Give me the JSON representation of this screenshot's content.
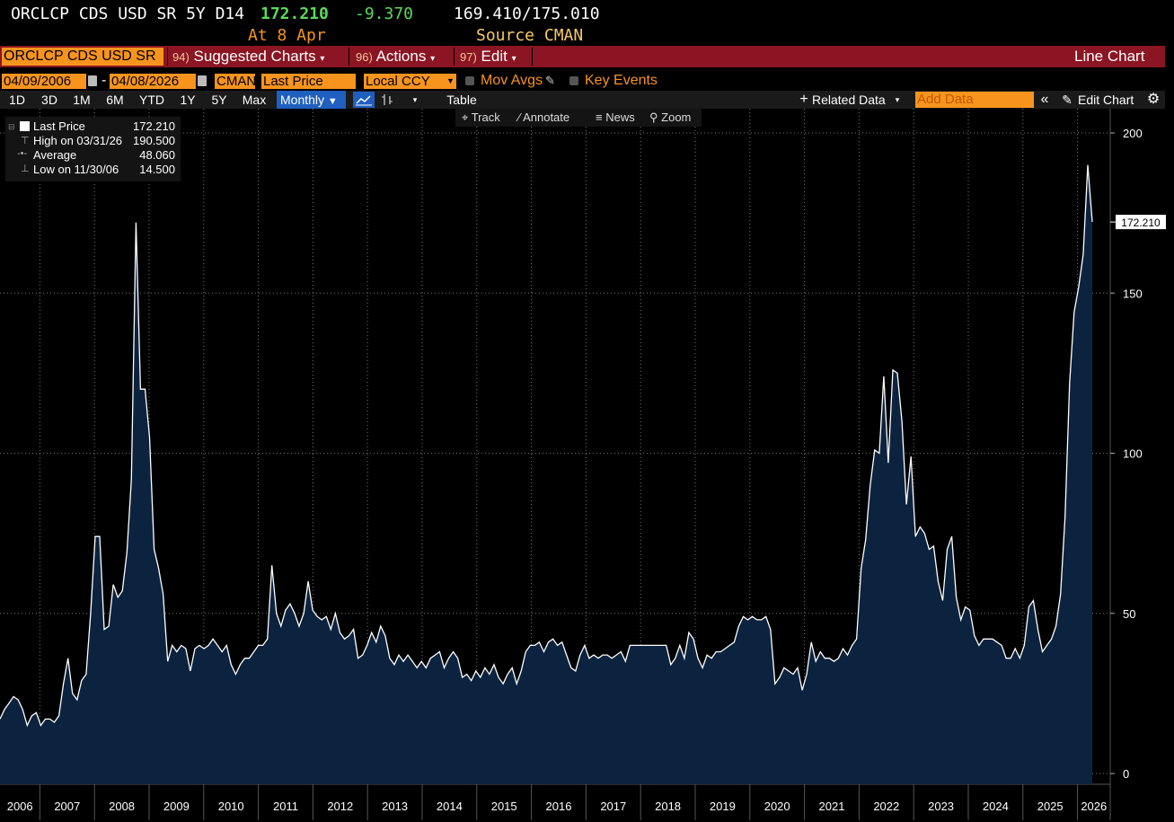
{
  "header": {
    "ticker": "ORCLCP CDS USD SR 5Y D14",
    "last": "172.210",
    "change": "-9.370",
    "bid_ask": "169.410/175.010",
    "at": "At 8 Apr",
    "source": "Source CMAN"
  },
  "menu": {
    "ticker_box": "ORCLCP CDS USD SR",
    "suggested_num": "94)",
    "suggested": "Suggested Charts",
    "actions_num": "96)",
    "actions": "Actions",
    "edit_num": "97)",
    "edit": "Edit",
    "chart_type": "Line Chart"
  },
  "controls": {
    "start_date": "04/09/2006",
    "dash": "-",
    "end_date": "04/08/2026",
    "source": "CMAN",
    "field": "Last Price",
    "currency": "Local CCY",
    "mov_avgs": "Mov Avgs",
    "key_events": "Key Events"
  },
  "range_bar": {
    "ranges": [
      "1D",
      "3D",
      "1M",
      "6M",
      "YTD",
      "1Y",
      "5Y",
      "Max"
    ],
    "frequency": "Monthly",
    "table": "Table",
    "related": "Related Data",
    "add_data_placeholder": "Add Data",
    "edit_chart": "Edit Chart"
  },
  "tools": {
    "track": "Track",
    "annotate": "Annotate",
    "news": "News",
    "zoom": "Zoom"
  },
  "legend": {
    "last_label": "Last Price",
    "last_value": "172.210",
    "high_label": "High on 03/31/26",
    "high_value": "190.500",
    "avg_label": "Average",
    "avg_value": "48.060",
    "low_label": "Low on 11/30/06",
    "low_value": "14.500"
  },
  "colors": {
    "background": "#000000",
    "line": "#ffffff",
    "area_fill": "#0c2340",
    "accent_orange": "#f7941d",
    "menu_red": "#8b1522",
    "last_green": "#5adb5a"
  },
  "chart_data": {
    "type": "area",
    "title": "",
    "xlabel": "",
    "ylabel": "",
    "ylim": [
      0,
      200
    ],
    "yticks": [
      0,
      50,
      100,
      150,
      200
    ],
    "last_label": "172.210",
    "x_labels": [
      "2006",
      "2007",
      "2008",
      "2009",
      "2010",
      "2011",
      "2012",
      "2013",
      "2014",
      "2015",
      "2016",
      "2017",
      "2018",
      "2019",
      "2020",
      "2021",
      "2022",
      "2023",
      "2024",
      "2025",
      "2026"
    ],
    "x_start": 2006.27,
    "x_end": 2026.27,
    "values": [
      17,
      20,
      22,
      24,
      23,
      20,
      15,
      18,
      19,
      15,
      17,
      17,
      16,
      18,
      28,
      36,
      25,
      23,
      29,
      31,
      50,
      74,
      74,
      45,
      46,
      59,
      55,
      57,
      69,
      92,
      172,
      120,
      120,
      105,
      70,
      64,
      56,
      35,
      40,
      38,
      40,
      39,
      32,
      39,
      40,
      39,
      40,
      42,
      40,
      38,
      40,
      34,
      31,
      34,
      36,
      36,
      38,
      40,
      40,
      42,
      65,
      50,
      46,
      51,
      53,
      50,
      46,
      50,
      60,
      51,
      49,
      48,
      49,
      45,
      50,
      44,
      42,
      43,
      45,
      36,
      37,
      40,
      44,
      41,
      46,
      43,
      36,
      34,
      37,
      35,
      37,
      35,
      33,
      35,
      33,
      36,
      37,
      38,
      33,
      36,
      38,
      36,
      30,
      31,
      29,
      32,
      30,
      33,
      31,
      34,
      30,
      28,
      31,
      33,
      28,
      32,
      38,
      40,
      40,
      41,
      38,
      41,
      42,
      40,
      41,
      37,
      33,
      32,
      37,
      40,
      36,
      37,
      36,
      37,
      37,
      36,
      37,
      38,
      35,
      40,
      40,
      40,
      40,
      40,
      40,
      40,
      40,
      40,
      34,
      36,
      40,
      36,
      44,
      42,
      36,
      33,
      37,
      36,
      38,
      38,
      39,
      40,
      41,
      46,
      49,
      48,
      49,
      48,
      48,
      49,
      45,
      28,
      30,
      33,
      32,
      31,
      33,
      26,
      31,
      41,
      35,
      38,
      36,
      36,
      35,
      36,
      39,
      37,
      40,
      42,
      64,
      73,
      90,
      101,
      100,
      124,
      97,
      126,
      125,
      110,
      84,
      99,
      74,
      77,
      75,
      70,
      71,
      60,
      54,
      70,
      74,
      55,
      48,
      52,
      51,
      43,
      40,
      42,
      42,
      42,
      41,
      40,
      36,
      36,
      39,
      36,
      40,
      52,
      54,
      45,
      38,
      40,
      42,
      46,
      56,
      80,
      122,
      144,
      152,
      162,
      190,
      172.2
    ]
  }
}
